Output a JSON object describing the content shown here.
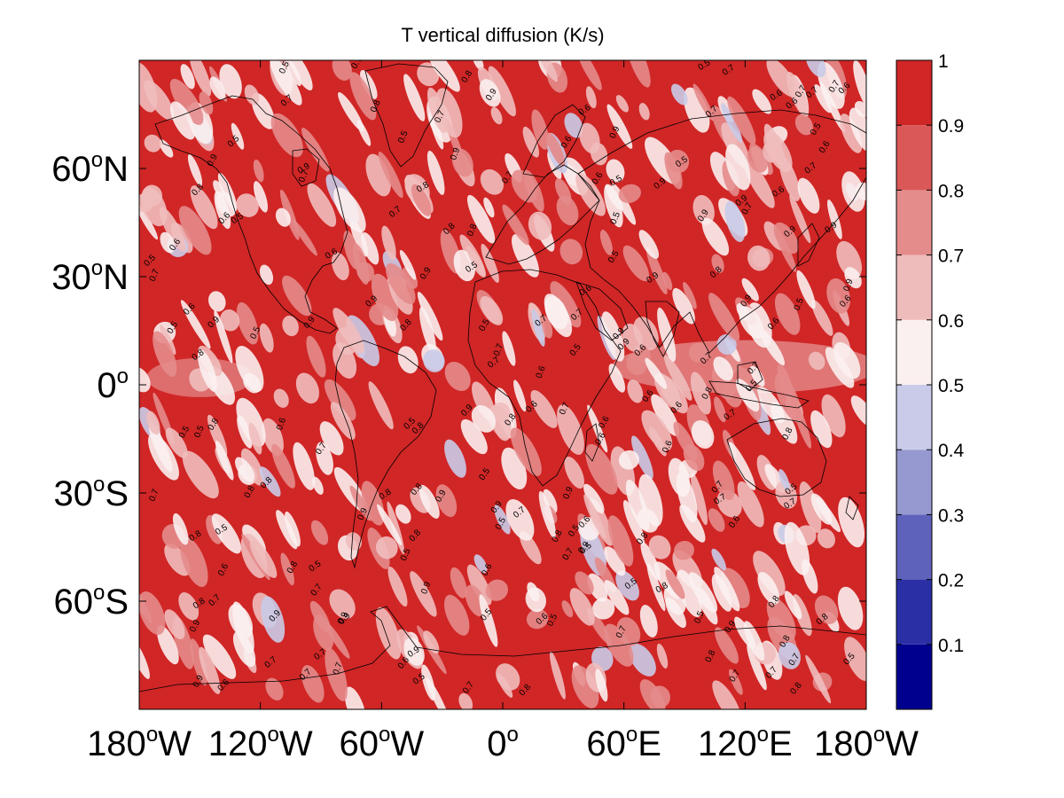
{
  "title": "T vertical diffusion (K/s)",
  "lat_labels": [
    {
      "deg": "60",
      "hemi": "N",
      "lat": 60
    },
    {
      "deg": "30",
      "hemi": "N",
      "lat": 30
    },
    {
      "deg": "0",
      "hemi": "",
      "lat": 0
    },
    {
      "deg": "30",
      "hemi": "S",
      "lat": -30
    },
    {
      "deg": "60",
      "hemi": "S",
      "lat": -60
    }
  ],
  "lon_labels": [
    {
      "deg": "180",
      "hemi": "W",
      "lon": -180
    },
    {
      "deg": "120",
      "hemi": "W",
      "lon": -120
    },
    {
      "deg": "60",
      "hemi": "W",
      "lon": -60
    },
    {
      "deg": "0",
      "hemi": "",
      "lon": 0
    },
    {
      "deg": "60",
      "hemi": "E",
      "lon": 60
    },
    {
      "deg": "120",
      "hemi": "E",
      "lon": 120
    },
    {
      "deg": "180",
      "hemi": "W",
      "lon": 180
    }
  ],
  "map_extent": {
    "lon": [
      -180,
      180
    ],
    "lat": [
      -90,
      90
    ]
  },
  "colorbar": {
    "min": 0,
    "max": 1,
    "tick_labels": [
      "0.1",
      "0.2",
      "0.3",
      "0.4",
      "0.5",
      "0.6",
      "0.7",
      "0.8",
      "0.9",
      "1"
    ],
    "tick_values": [
      0.1,
      0.2,
      0.3,
      0.4,
      0.5,
      0.6,
      0.7,
      0.8,
      0.9,
      1.0
    ],
    "bands": [
      {
        "from": 0.0,
        "to": 0.1,
        "color": "#00008f"
      },
      {
        "from": 0.1,
        "to": 0.2,
        "color": "#2a2fa6"
      },
      {
        "from": 0.2,
        "to": 0.3,
        "color": "#5e62bb"
      },
      {
        "from": 0.3,
        "to": 0.4,
        "color": "#9699d0"
      },
      {
        "from": 0.4,
        "to": 0.5,
        "color": "#c9cbe8"
      },
      {
        "from": 0.5,
        "to": 0.6,
        "color": "#fbf0f0"
      },
      {
        "from": 0.6,
        "to": 0.7,
        "color": "#efbcbc"
      },
      {
        "from": 0.7,
        "to": 0.8,
        "color": "#e48b8b"
      },
      {
        "from": 0.8,
        "to": 0.9,
        "color": "#da5858"
      },
      {
        "from": 0.9,
        "to": 1.0,
        "color": "#d02626"
      }
    ]
  },
  "colors": {
    "background_field": "#d02626",
    "coastline": "#000000"
  },
  "contour_numbers": [
    "0.5",
    "0.6",
    "0.7",
    "0.8",
    "0.9"
  ]
}
